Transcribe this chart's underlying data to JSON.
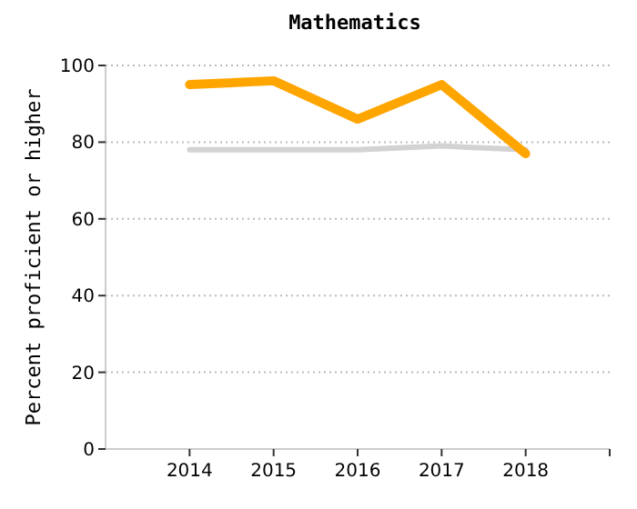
{
  "chart_data": {
    "type": "line",
    "title": "Mathematics",
    "ylabel": "Percent proficient or higher",
    "x": [
      2014,
      2015,
      2016,
      2017,
      2018
    ],
    "series": [
      {
        "color": "#d3d3d3",
        "values": [
          78,
          78,
          78,
          79,
          78
        ]
      },
      {
        "color": "#ffa500",
        "values": [
          95,
          96,
          86,
          95,
          77
        ]
      }
    ],
    "xlim": [
      2013,
      2019
    ],
    "xticks": [
      2014,
      2015,
      2016,
      2017,
      2018,
      {
        "value": 2019,
        "label": null
      }
    ],
    "ylim": [
      0,
      100
    ],
    "yticks": [
      0,
      20,
      40,
      60,
      80,
      100
    ],
    "grid": "y",
    "marker": "none",
    "line_style": "solid"
  }
}
